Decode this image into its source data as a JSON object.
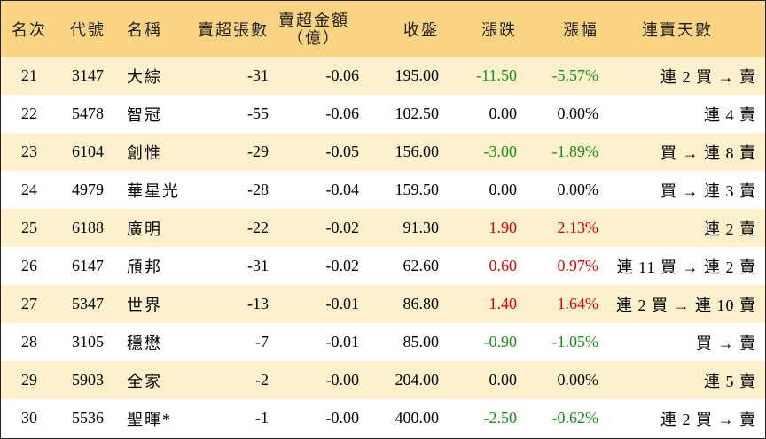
{
  "headers": {
    "rank": "名次",
    "code": "代號",
    "name": "名稱",
    "net_lots": "賣超張數",
    "net_amount_line1": "賣超金額",
    "net_amount_line2": "（億）",
    "close": "收盤",
    "change": "漲跌",
    "change_pct": "漲幅",
    "streak": "連賣天數"
  },
  "colors": {
    "header_bg": "#fbd483",
    "odd_row_bg": "#fdf0cc",
    "even_row_bg": "#ffffff",
    "positive": "#e00000",
    "negative": "#1a8c1a"
  },
  "rows": [
    {
      "rank": "21",
      "code": "3147",
      "name": "大綜",
      "net_lots": "-31",
      "net_amount": "-0.06",
      "close": "195.00",
      "change": "-11.50",
      "change_pct": "-5.57%",
      "streak": "連 2 買 → 賣",
      "trend": "down"
    },
    {
      "rank": "22",
      "code": "5478",
      "name": "智冠",
      "net_lots": "-55",
      "net_amount": "-0.06",
      "close": "102.50",
      "change": "0.00",
      "change_pct": "0.00%",
      "streak": "連 4 賣",
      "trend": "flat"
    },
    {
      "rank": "23",
      "code": "6104",
      "name": "創惟",
      "net_lots": "-29",
      "net_amount": "-0.05",
      "close": "156.00",
      "change": "-3.00",
      "change_pct": "-1.89%",
      "streak": "買 → 連 8 賣",
      "trend": "down"
    },
    {
      "rank": "24",
      "code": "4979",
      "name": "華星光",
      "net_lots": "-28",
      "net_amount": "-0.04",
      "close": "159.50",
      "change": "0.00",
      "change_pct": "0.00%",
      "streak": "買 → 連 3 賣",
      "trend": "flat"
    },
    {
      "rank": "25",
      "code": "6188",
      "name": "廣明",
      "net_lots": "-22",
      "net_amount": "-0.02",
      "close": "91.30",
      "change": "1.90",
      "change_pct": "2.13%",
      "streak": "連 2 賣",
      "trend": "up"
    },
    {
      "rank": "26",
      "code": "6147",
      "name": "頎邦",
      "net_lots": "-31",
      "net_amount": "-0.02",
      "close": "62.60",
      "change": "0.60",
      "change_pct": "0.97%",
      "streak": "連 11 買 → 連 2 賣",
      "trend": "up"
    },
    {
      "rank": "27",
      "code": "5347",
      "name": "世界",
      "net_lots": "-13",
      "net_amount": "-0.01",
      "close": "86.80",
      "change": "1.40",
      "change_pct": "1.64%",
      "streak": "連 2 買 → 連 10 賣",
      "trend": "up"
    },
    {
      "rank": "28",
      "code": "3105",
      "name": "穩懋",
      "net_lots": "-7",
      "net_amount": "-0.01",
      "close": "85.00",
      "change": "-0.90",
      "change_pct": "-1.05%",
      "streak": "買 → 賣",
      "trend": "down"
    },
    {
      "rank": "29",
      "code": "5903",
      "name": "全家",
      "net_lots": "-2",
      "net_amount": "-0.00",
      "close": "204.00",
      "change": "0.00",
      "change_pct": "0.00%",
      "streak": "連 5 賣",
      "trend": "flat"
    },
    {
      "rank": "30",
      "code": "5536",
      "name": "聖暉*",
      "net_lots": "-1",
      "net_amount": "-0.00",
      "close": "400.00",
      "change": "-2.50",
      "change_pct": "-0.62%",
      "streak": "連 2 買 → 賣",
      "trend": "down"
    }
  ]
}
